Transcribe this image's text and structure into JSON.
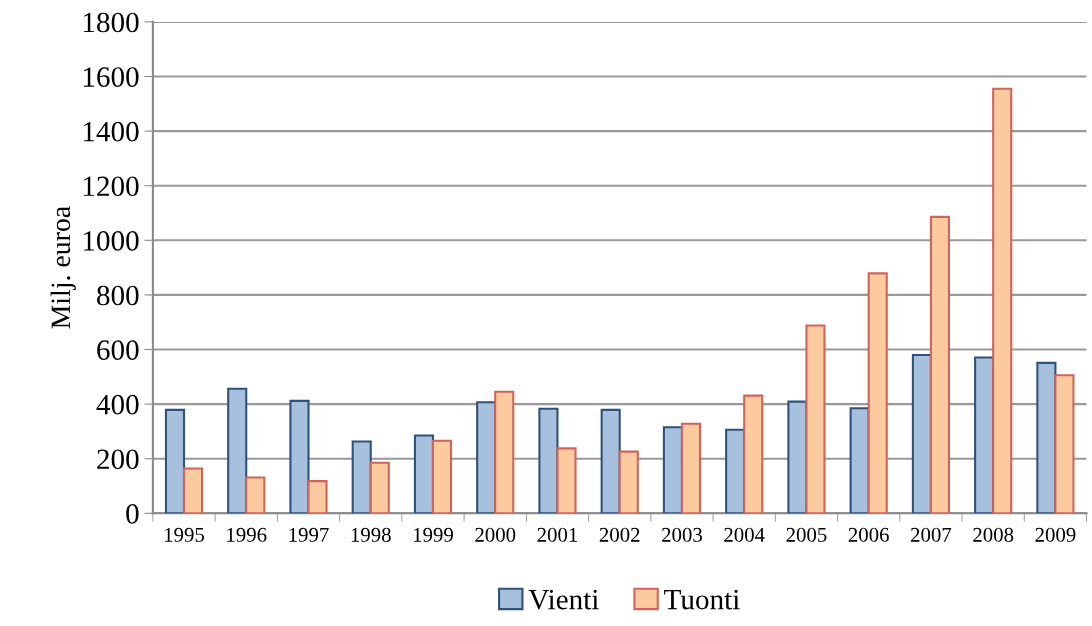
{
  "chart_data": {
    "type": "bar",
    "ylabel": "Milj. euroa",
    "categories": [
      "1995",
      "1996",
      "1997",
      "1998",
      "1999",
      "2000",
      "2001",
      "2002",
      "2003",
      "2004",
      "2005",
      "2006",
      "2007",
      "2008",
      "2009"
    ],
    "series": [
      {
        "name": "Vienti",
        "color": "#a7c0de",
        "values": [
          379,
          456,
          412,
          263,
          285,
          407,
          383,
          379,
          315,
          306,
          409,
          385,
          580,
          571,
          551
        ]
      },
      {
        "name": "Tuonti",
        "color": "#fbca9f",
        "values": [
          164,
          131,
          118,
          185,
          266,
          445,
          238,
          226,
          328,
          431,
          688,
          879,
          1086,
          1555,
          506
        ]
      }
    ],
    "ylim": [
      0,
      1800
    ],
    "yticks": [
      0,
      200,
      400,
      600,
      800,
      1000,
      1200,
      1400,
      1600,
      1800
    ],
    "grid": "y",
    "legend": "bottom"
  }
}
